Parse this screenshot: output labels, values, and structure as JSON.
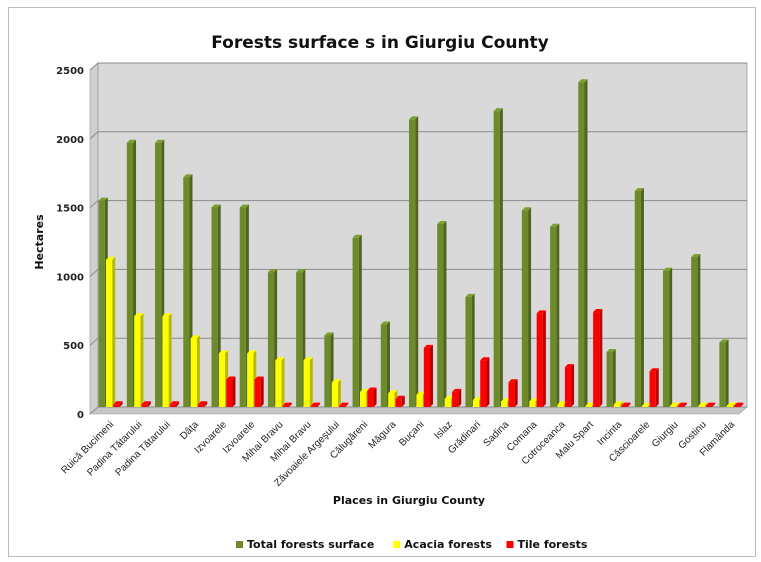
{
  "chart_data": {
    "type": "bar",
    "title": "Forests surface s in Giurgiu County",
    "xlabel": "Places in Giurgiu County",
    "ylabel": "Hectares",
    "ylim": [
      0,
      2500
    ],
    "yticks": [
      "0",
      "500",
      "1000",
      "1500",
      "2000",
      "2500"
    ],
    "grid": true,
    "legend_position": "bottom",
    "categories": [
      "Ruică Bucimeni",
      "Padina Tătarului",
      "Padina Tătarului",
      "Dâţa",
      "Izvoarele",
      "Izvoarele",
      "Mihai Bravu",
      "Mihai Bravu",
      "Zăvoaiele Argeşului",
      "Călugăreni",
      "Măgura",
      "Buçani",
      "Islaz",
      "Grădinari",
      "Sadina",
      "Comana",
      "Cotroceanca",
      "Malu Spart",
      "Incinta",
      "Căscioarele",
      "Giurgiu",
      "Gostinu",
      "Flamânda"
    ],
    "series": [
      {
        "name": "Total forests surface",
        "color": "#6e8b2b",
        "values": [
          1500,
          1920,
          1920,
          1670,
          1450,
          1450,
          980,
          980,
          520,
          1230,
          600,
          2090,
          1330,
          800,
          2150,
          1430,
          1310,
          2360,
          400,
          1570,
          990,
          1090,
          470
        ]
      },
      {
        "name": "Acacia forests",
        "color": "#ffff00",
        "values": [
          1070,
          660,
          660,
          500,
          390,
          390,
          340,
          340,
          180,
          110,
          100,
          90,
          60,
          50,
          40,
          40,
          20,
          10,
          20,
          0,
          10,
          10,
          10
        ]
      },
      {
        "name": "Tile forests",
        "color": "#ff0000",
        "values": [
          20,
          20,
          20,
          20,
          200,
          200,
          10,
          10,
          10,
          120,
          60,
          430,
          110,
          340,
          180,
          680,
          290,
          690,
          10,
          260,
          10,
          10,
          10
        ]
      }
    ]
  }
}
